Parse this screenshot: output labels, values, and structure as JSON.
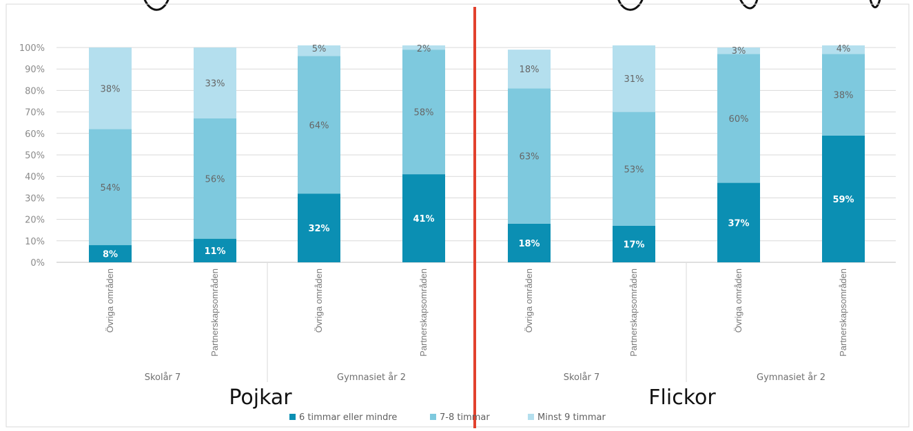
{
  "colors": {
    "accent_divider": "#e2412d",
    "grid": "#d9d9d9",
    "axis_text": "#8a8a8a",
    "label_dark": "#666666",
    "label_light": "#ffffff"
  },
  "chart_data": {
    "type": "bar",
    "stacked": true,
    "percent_stacked": true,
    "title": "",
    "ylim": [
      0,
      100
    ],
    "yticks": [
      "0%",
      "10%",
      "20%",
      "30%",
      "40%",
      "50%",
      "60%",
      "70%",
      "80%",
      "90%",
      "100%"
    ],
    "grid": true,
    "legend_placement": "bottom",
    "categories": [
      "Övriga områden",
      "Partnerskapsområden",
      "Övriga områden",
      "Partnerskapsområden",
      "Övriga områden",
      "Partnerskapsområden",
      "Övriga områden",
      "Partnerskapsområden"
    ],
    "groups": [
      "Skolår 7",
      "Gymnasiet år 2",
      "Skolår 7",
      "Gymnasiet år 2"
    ],
    "panels": [
      "Pojkar",
      "Flickor"
    ],
    "series": [
      {
        "name": "6 timmar eller mindre",
        "color": "#0b8fb3",
        "values": [
          8,
          11,
          32,
          41,
          18,
          17,
          37,
          59
        ],
        "labels": [
          "8%",
          "11%",
          "32%",
          "41%",
          "18%",
          "17%",
          "37%",
          "59%"
        ]
      },
      {
        "name": "7-8 timmar",
        "color": "#7ec9de",
        "values": [
          54,
          56,
          64,
          58,
          63,
          53,
          60,
          38
        ],
        "labels": [
          "54%",
          "56%",
          "64%",
          "58%",
          "63%",
          "53%",
          "60%",
          "38%"
        ]
      },
      {
        "name": "Minst 9 timmar",
        "color": "#b4dfee",
        "values": [
          38,
          33,
          5,
          2,
          18,
          31,
          3,
          4
        ],
        "labels": [
          "38%",
          "33%",
          "5%",
          "2%",
          "18%",
          "31%",
          "3%",
          "4%"
        ]
      }
    ]
  }
}
